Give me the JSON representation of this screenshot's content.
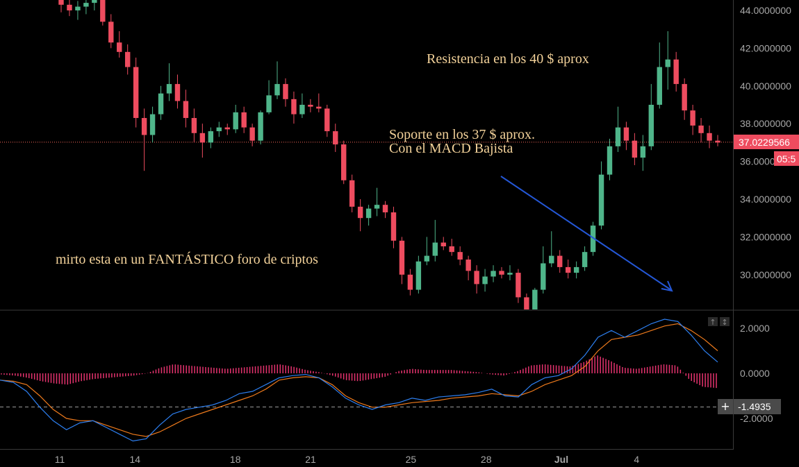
{
  "chart_data": [
    {
      "type": "candlestick",
      "panel": "price",
      "y_ticks": [
        "44.0000000",
        "42.0000000",
        "40.0000000",
        "38.0000000",
        "36.0000000",
        "34.0000000",
        "32.0000000",
        "30.0000000"
      ],
      "ylim": [
        28.0,
        44.5
      ],
      "current_price_label": "37.0229566",
      "countdown_label": "05:5",
      "current_price": 37.02,
      "candles": [
        [
          44.8,
          45.2,
          43.9,
          44.3
        ],
        [
          44.3,
          44.6,
          43.7,
          44.0
        ],
        [
          44.0,
          44.5,
          43.5,
          44.2
        ],
        [
          44.2,
          44.7,
          43.8,
          44.4
        ],
        [
          44.4,
          44.9,
          44.0,
          44.6
        ],
        [
          44.6,
          44.9,
          43.2,
          43.4
        ],
        [
          43.4,
          43.8,
          42.0,
          42.3
        ],
        [
          42.3,
          42.9,
          41.5,
          41.8
        ],
        [
          41.8,
          42.2,
          40.6,
          41.0
        ],
        [
          41.0,
          41.5,
          37.8,
          38.3
        ],
        [
          38.3,
          38.8,
          35.5,
          37.4
        ],
        [
          37.4,
          38.9,
          37.0,
          38.5
        ],
        [
          38.5,
          40.0,
          38.2,
          39.6
        ],
        [
          39.6,
          41.2,
          39.2,
          40.1
        ],
        [
          40.1,
          40.6,
          38.8,
          39.2
        ],
        [
          39.2,
          39.8,
          37.8,
          38.3
        ],
        [
          38.3,
          38.8,
          37.0,
          37.5
        ],
        [
          37.5,
          38.0,
          36.2,
          37.0
        ],
        [
          37.0,
          37.8,
          36.7,
          37.6
        ],
        [
          37.6,
          38.1,
          37.3,
          37.8
        ],
        [
          37.8,
          38.0,
          37.4,
          37.7
        ],
        [
          37.7,
          39.0,
          37.5,
          38.6
        ],
        [
          38.6,
          38.9,
          37.5,
          37.8
        ],
        [
          37.8,
          38.0,
          36.8,
          37.1
        ],
        [
          37.1,
          38.7,
          36.9,
          38.6
        ],
        [
          38.6,
          40.3,
          38.5,
          39.5
        ],
        [
          39.5,
          41.3,
          39.3,
          40.1
        ],
        [
          40.1,
          40.4,
          38.9,
          39.3
        ],
        [
          39.3,
          39.7,
          38.0,
          38.5
        ],
        [
          38.5,
          39.6,
          38.3,
          39.0
        ],
        [
          39.0,
          39.3,
          38.6,
          38.9
        ],
        [
          38.9,
          39.6,
          38.6,
          38.8
        ],
        [
          38.8,
          39.0,
          37.3,
          37.6
        ],
        [
          37.6,
          38.0,
          36.5,
          36.9
        ],
        [
          36.9,
          37.1,
          34.8,
          35.0
        ],
        [
          35.0,
          35.3,
          33.3,
          33.6
        ],
        [
          33.6,
          34.0,
          32.3,
          33.0
        ],
        [
          33.0,
          33.7,
          32.6,
          33.5
        ],
        [
          33.5,
          34.6,
          33.1,
          33.7
        ],
        [
          33.7,
          33.9,
          33.0,
          33.3
        ],
        [
          33.3,
          33.6,
          31.4,
          31.8
        ],
        [
          31.8,
          32.0,
          29.5,
          30.0
        ],
        [
          30.0,
          30.3,
          28.9,
          29.2
        ],
        [
          29.2,
          31.0,
          29.0,
          30.7
        ],
        [
          30.7,
          32.0,
          30.5,
          31.0
        ],
        [
          31.0,
          32.9,
          30.7,
          31.7
        ],
        [
          31.7,
          32.0,
          31.3,
          31.5
        ],
        [
          31.5,
          31.9,
          31.0,
          31.2
        ],
        [
          31.2,
          31.5,
          30.5,
          30.8
        ],
        [
          30.8,
          31.0,
          29.7,
          30.2
        ],
        [
          30.2,
          30.5,
          29.0,
          29.5
        ],
        [
          29.5,
          30.3,
          29.1,
          29.9
        ],
        [
          29.9,
          30.5,
          29.6,
          30.2
        ],
        [
          30.2,
          30.4,
          29.8,
          30.0
        ],
        [
          30.0,
          30.5,
          29.7,
          30.1
        ],
        [
          30.1,
          30.3,
          28.5,
          28.8
        ],
        [
          28.8,
          29.0,
          27.6,
          28.0
        ],
        [
          28.0,
          29.3,
          27.8,
          29.2
        ],
        [
          29.2,
          31.5,
          29.0,
          30.6
        ],
        [
          30.6,
          32.3,
          30.4,
          31.0
        ],
        [
          31.0,
          31.3,
          30.1,
          30.4
        ],
        [
          30.4,
          30.8,
          29.8,
          30.1
        ],
        [
          30.1,
          30.7,
          29.8,
          30.4
        ],
        [
          30.4,
          31.5,
          30.2,
          31.2
        ],
        [
          31.2,
          32.8,
          31.0,
          32.6
        ],
        [
          32.6,
          36.0,
          32.4,
          35.3
        ],
        [
          35.3,
          37.2,
          35.0,
          36.8
        ],
        [
          36.8,
          38.9,
          36.5,
          37.8
        ],
        [
          37.8,
          38.1,
          36.6,
          37.1
        ],
        [
          37.1,
          37.5,
          35.8,
          36.2
        ],
        [
          36.2,
          37.4,
          35.5,
          36.8
        ],
        [
          36.8,
          40.1,
          36.6,
          39.0
        ],
        [
          39.0,
          42.3,
          38.8,
          41.0
        ],
        [
          41.0,
          42.9,
          39.8,
          41.4
        ],
        [
          41.4,
          41.8,
          39.7,
          40.1
        ],
        [
          40.1,
          40.4,
          38.2,
          38.7
        ],
        [
          38.7,
          39.0,
          37.4,
          37.9
        ],
        [
          37.9,
          38.3,
          37.0,
          37.5
        ],
        [
          37.5,
          37.9,
          36.7,
          37.1
        ],
        [
          37.1,
          37.4,
          36.8,
          37.0
        ]
      ]
    },
    {
      "type": "line",
      "panel": "macd",
      "y_ticks": [
        "2.0000",
        "0.0000",
        "-2.0000"
      ],
      "ylim": [
        -3.4,
        2.8
      ],
      "dashed_level": -1.4935,
      "dashed_level_label": "-1.4935",
      "plus_label": "+",
      "macd_line": [
        -0.3,
        -0.4,
        -0.8,
        -1.5,
        -2.1,
        -2.5,
        -2.2,
        -2.1,
        -2.4,
        -2.7,
        -3.0,
        -2.9,
        -2.3,
        -1.8,
        -1.6,
        -1.5,
        -1.4,
        -1.2,
        -0.9,
        -0.8,
        -0.5,
        -0.2,
        -0.1,
        -0.05,
        -0.2,
        -0.6,
        -1.1,
        -1.4,
        -1.6,
        -1.4,
        -1.3,
        -1.1,
        -1.2,
        -1.05,
        -1.0,
        -0.95,
        -0.85,
        -0.7,
        -1.0,
        -1.05,
        -0.5,
        -0.2,
        -0.1,
        0.2,
        0.8,
        1.6,
        1.9,
        1.6,
        1.9,
        2.2,
        2.4,
        2.3,
        1.7,
        1.0,
        0.5
      ],
      "signal_line": [
        -0.3,
        -0.35,
        -0.5,
        -1.0,
        -1.6,
        -2.0,
        -2.1,
        -2.1,
        -2.3,
        -2.5,
        -2.7,
        -2.8,
        -2.6,
        -2.3,
        -2.0,
        -1.8,
        -1.6,
        -1.4,
        -1.2,
        -1.0,
        -0.7,
        -0.3,
        -0.2,
        -0.15,
        -0.2,
        -0.5,
        -1.0,
        -1.3,
        -1.5,
        -1.5,
        -1.4,
        -1.3,
        -1.25,
        -1.2,
        -1.1,
        -1.05,
        -1.0,
        -0.9,
        -0.95,
        -1.0,
        -0.8,
        -0.5,
        -0.3,
        -0.1,
        0.3,
        1.0,
        1.5,
        1.6,
        1.7,
        1.9,
        2.1,
        2.2,
        1.9,
        1.5,
        1.0
      ],
      "histogram": [
        -0.05,
        -0.1,
        -0.2,
        -0.35,
        -0.45,
        -0.5,
        -0.35,
        -0.25,
        -0.2,
        -0.15,
        -0.1,
        0.0,
        0.25,
        0.4,
        0.35,
        0.3,
        0.25,
        0.2,
        0.25,
        0.3,
        0.35,
        0.4,
        0.3,
        0.15,
        0.05,
        -0.1,
        -0.3,
        -0.35,
        -0.25,
        -0.15,
        0.1,
        0.2,
        0.15,
        0.15,
        0.15,
        0.1,
        0.05,
        -0.05,
        -0.1,
        0.1,
        0.35,
        0.4,
        0.35,
        0.3,
        0.5,
        0.8,
        0.55,
        0.25,
        0.2,
        0.3,
        0.4,
        0.35,
        -0.3,
        -0.6,
        -0.65
      ]
    }
  ],
  "x_ticks": [
    {
      "label": "11",
      "day": 11
    },
    {
      "label": "14",
      "day": 14
    },
    {
      "label": "18",
      "day": 18
    },
    {
      "label": "21",
      "day": 21
    },
    {
      "label": "25",
      "day": 25
    },
    {
      "label": "28",
      "day": 28
    },
    {
      "label": "Jul",
      "day": 31
    },
    {
      "label": "4",
      "day": 34
    }
  ],
  "annotations": {
    "resistance": "Resistencia en los 40 $ aprox",
    "support_line1": "Soporte  en los 37 $ aprox.",
    "support_line2": "Con el MACD Bajista",
    "forum": "mirto esta en un FANTÁSTICO foro de criptos"
  },
  "colors": {
    "background": "#000000",
    "up": "#4fb58a",
    "down": "#ee4c5f",
    "macd": "#2d7ff0",
    "signal": "#ee7a1c",
    "histogram": "#e6336f",
    "price_line": "#ff6a5e",
    "arrow": "#2457d6",
    "axis_text": "#a7a7a7",
    "annotation": "#f3d29a"
  }
}
